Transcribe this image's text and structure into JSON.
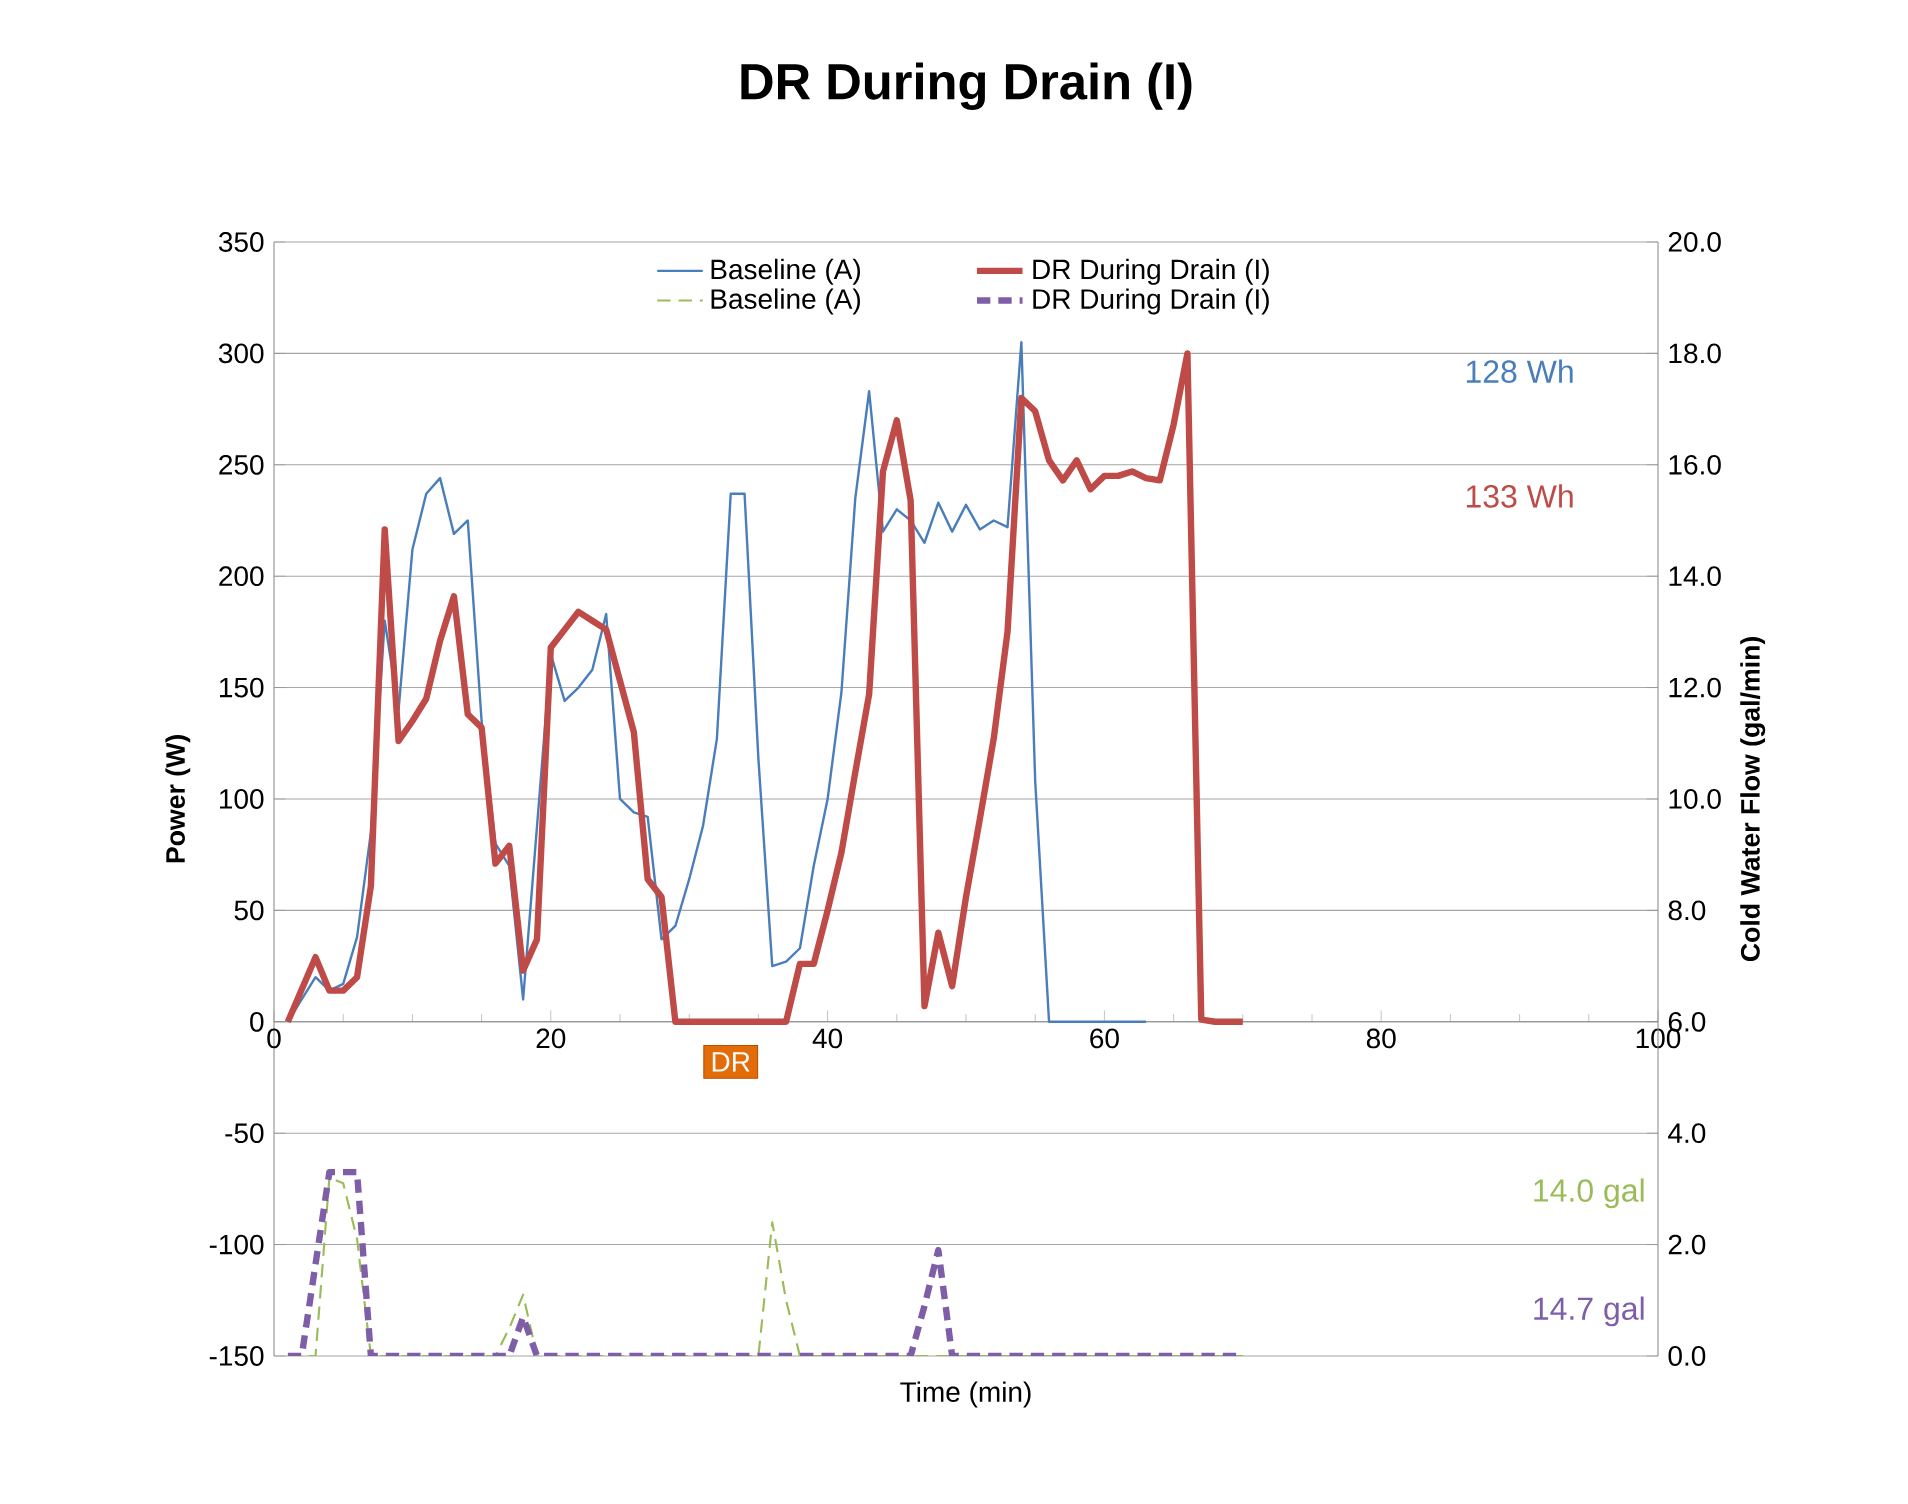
{
  "chart_data": {
    "type": "line",
    "title": "DR During Drain (I)",
    "xlabel": "Time (min)",
    "ylabel": "Power (W)",
    "y2label": "Cold Water Flow (gal/min)",
    "xlim": [
      0,
      100
    ],
    "xticks": [
      0,
      20,
      40,
      60,
      80,
      100
    ],
    "ylim": [
      -150,
      350
    ],
    "yticks": [
      -150,
      -100,
      -50,
      0,
      50,
      100,
      150,
      200,
      250,
      300,
      350
    ],
    "y2lim": [
      0,
      20
    ],
    "y2ticks": [
      {
        "value": 0,
        "label": "0.0"
      },
      {
        "value": 2,
        "label": "2.0"
      },
      {
        "value": 4,
        "label": "4.0"
      },
      {
        "value": 6,
        "label": "6.0"
      },
      {
        "value": 8,
        "label": "8.0"
      },
      {
        "value": 10,
        "label": "10.0"
      },
      {
        "value": 12,
        "label": "12.0"
      },
      {
        "value": 14,
        "label": "14.0"
      },
      {
        "value": 16,
        "label": "16.0"
      },
      {
        "value": 18,
        "label": "18.0"
      },
      {
        "value": 20,
        "label": "20.0"
      }
    ],
    "grid": "y",
    "legend": "top",
    "marker": "none",
    "series": [
      {
        "name": "Baseline (A)",
        "color": "#4a7ebb",
        "line_style": "solid",
        "x": [
          1,
          2,
          3,
          4,
          5,
          6,
          7,
          8,
          9,
          10,
          11,
          12,
          13,
          14,
          15,
          16,
          17,
          18,
          19,
          20,
          21,
          22,
          23,
          24,
          25,
          26,
          27,
          28,
          29,
          30,
          31,
          32,
          33,
          34,
          35,
          36,
          37,
          38,
          39,
          40,
          41,
          42,
          43,
          44,
          45,
          46,
          47,
          48,
          49,
          50,
          51,
          52,
          53,
          54,
          55,
          56,
          57,
          58,
          59,
          60,
          61,
          62,
          63
        ],
        "values": [
          0,
          10,
          20,
          14,
          17,
          38,
          85,
          180,
          140,
          212,
          237,
          244,
          219,
          225,
          135,
          80,
          70,
          10,
          null,
          165,
          144,
          150,
          158,
          183,
          100,
          94,
          92,
          37,
          43,
          64,
          88,
          127,
          237,
          237,
          118,
          25,
          27,
          33,
          70,
          100,
          148,
          235,
          283,
          220,
          230,
          225,
          215,
          233,
          220,
          232,
          221,
          225,
          222,
          305,
          108,
          0,
          0,
          0,
          0,
          0,
          0,
          0,
          0
        ]
      },
      {
        "name": "DR During Drain (I)",
        "color": "#be4b48",
        "line_style": "solid",
        "x": [
          1,
          3,
          4,
          5,
          6,
          7,
          8,
          9,
          10,
          11,
          12,
          13,
          14,
          15,
          16,
          17,
          18,
          19,
          20,
          21,
          22,
          23,
          24,
          25,
          26,
          27,
          28,
          29,
          30,
          31,
          32,
          33,
          34,
          35,
          36,
          37,
          38,
          39,
          40,
          41,
          42,
          43,
          44,
          45,
          46,
          47,
          48,
          49,
          50,
          51,
          52,
          53,
          54,
          55,
          56,
          57,
          58,
          59,
          60,
          61,
          62,
          63,
          64,
          65,
          66,
          67,
          68,
          69,
          70
        ],
        "values": [
          0,
          29,
          14,
          14,
          20,
          61,
          221,
          126,
          135,
          145,
          171,
          191,
          138,
          132,
          71,
          79,
          23,
          37,
          168,
          176,
          184,
          180,
          176,
          153,
          130,
          64,
          56,
          0,
          0,
          0,
          0,
          0,
          0,
          0,
          0,
          0,
          26,
          26,
          50,
          76,
          112,
          147,
          247,
          270,
          234,
          7,
          40,
          16,
          56,
          91,
          127,
          175,
          280,
          274,
          252,
          243,
          252,
          239,
          245,
          245,
          247,
          244,
          243,
          268,
          300,
          1,
          0,
          0,
          0
        ]
      },
      {
        "name": "Baseline (A)",
        "color": "#9bbb59",
        "line_style": "dashed",
        "axis": "y2",
        "x": [
          1,
          3,
          4,
          5,
          6,
          7,
          16,
          17,
          18,
          19,
          35,
          36,
          37,
          38,
          70
        ],
        "values": [
          0,
          0,
          3.2,
          3.1,
          2.1,
          0,
          0,
          0.5,
          1.1,
          0,
          0,
          2.4,
          1.0,
          0,
          0
        ]
      },
      {
        "name": "DR During Drain (I)",
        "color": "#7f5ea8",
        "line_style": "dashed",
        "axis": "y2",
        "x": [
          1,
          2,
          4,
          6,
          7,
          17,
          18,
          19,
          46,
          47,
          48,
          49,
          70
        ],
        "values": [
          0,
          0,
          3.3,
          3.3,
          0,
          0,
          0.7,
          0,
          0,
          0.9,
          1.9,
          0,
          0
        ]
      }
    ],
    "annotations": [
      "128 Wh",
      "133 Wh",
      "14.0 gal",
      "14.7 gal",
      "DR"
    ]
  }
}
